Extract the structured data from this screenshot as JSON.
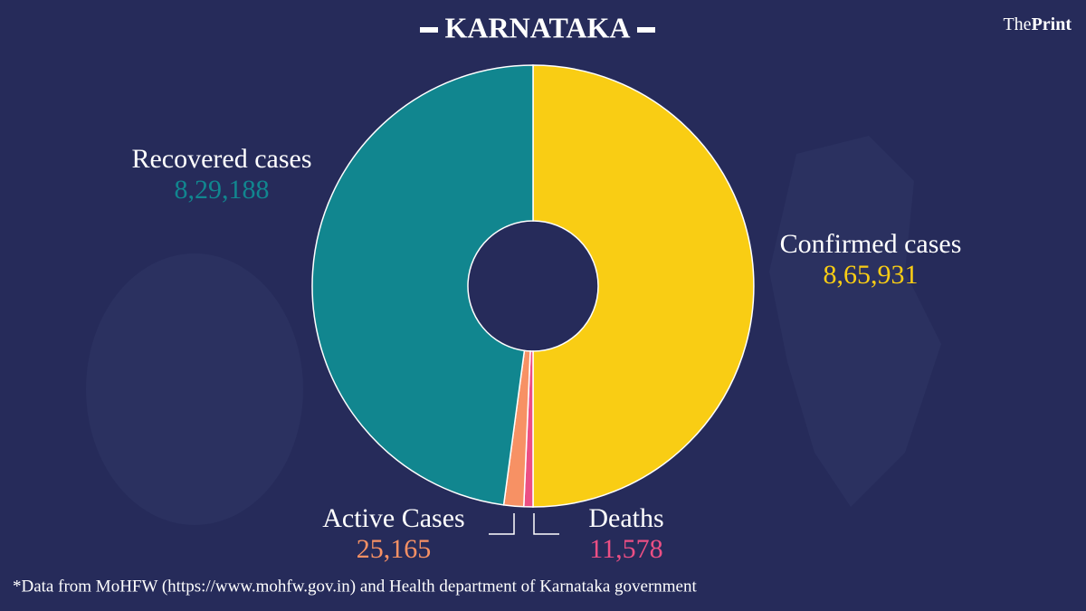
{
  "chart_data": {
    "type": "donut",
    "title": "KARNATAKA",
    "categories": [
      "Confirmed cases",
      "Deaths",
      "Active Cases",
      "Recovered cases"
    ],
    "values": [
      865931,
      11578,
      25165,
      829188
    ],
    "value_labels": [
      "8,65,931",
      "11,578",
      "25,165",
      "8,29,188"
    ],
    "colors": [
      "#f9cd14",
      "#ec4f84",
      "#f79164",
      "#11868f"
    ]
  },
  "logo": [
    "The",
    "Print"
  ],
  "footnote": "*Data from MoHFW (https://www.mohfw.gov.in) and Health department of Karnataka government"
}
